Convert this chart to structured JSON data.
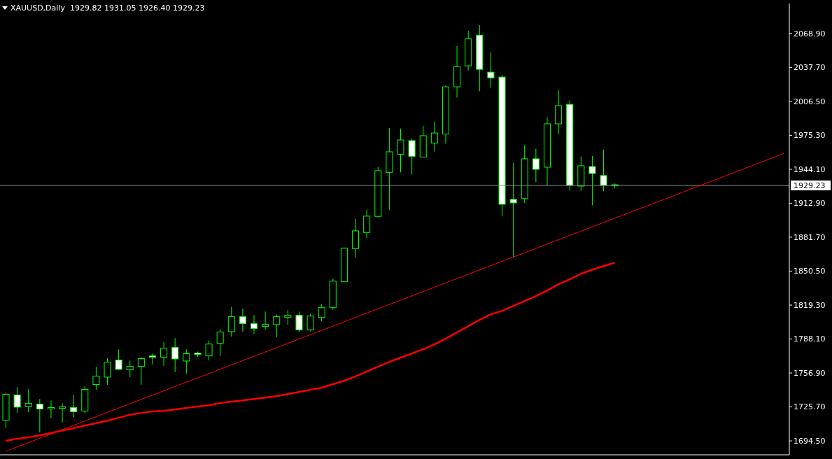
{
  "chart_data": {
    "type": "candlestick",
    "title": "XAUUSD,Daily  1929.82 1931.05 1926.40 1929.23",
    "categories": [
      null,
      null,
      null,
      null,
      null,
      null,
      null,
      null,
      null,
      null,
      null,
      null,
      null,
      null,
      null,
      null,
      null,
      null,
      null,
      null,
      null,
      null,
      null,
      null,
      null,
      null,
      null,
      null,
      null,
      null,
      null,
      null,
      null,
      null,
      null,
      null,
      null,
      null,
      null,
      null,
      null,
      null,
      null,
      null,
      null,
      null,
      null,
      null,
      null,
      null,
      null,
      null,
      null,
      null,
      null,
      null,
      null,
      null,
      null,
      null,
      null,
      null,
      null,
      null,
      null,
      null,
      null,
      null,
      null,
      null
    ],
    "series": [
      {
        "color": "#00ff00",
        "colors": [
          "#000000",
          "#ffffff",
          "#000000",
          "#ffffff",
          "#000000",
          "#000000",
          "#ffffff",
          "#000000",
          "#000000",
          "#000000",
          "#ffffff",
          "#000000",
          "#000000",
          "#ffffff",
          "#000000",
          "#ffffff",
          "#000000",
          "#ffffff",
          "#000000",
          "#000000",
          "#000000",
          "#ffffff",
          "#ffffff",
          "#000000",
          "#000000",
          "#000000",
          "#ffffff",
          "#000000",
          "#000000",
          "#000000",
          "#000000",
          "#000000",
          "#000000",
          "#000000",
          "#000000",
          "#000000",
          "#ffffff",
          "#000000",
          "#000000",
          "#000000",
          "#000000",
          "#000000",
          "#ffffff",
          "#ffffff",
          "#ffffff",
          "#ffffff",
          "#000000",
          "#ffffff",
          "#000000",
          "#000000",
          "#ffffff",
          "#000000",
          "#ffffff",
          "#ffffff",
          "#ffffff",
          null,
          null,
          null,
          null,
          null,
          null,
          null,
          null,
          null,
          null,
          null,
          null,
          null,
          null,
          null
        ],
        "ohlc": [
          [
            1713.3,
            1739.0,
            1706.2,
            1737.3
          ],
          [
            1736.7,
            1743.9,
            1720.4,
            1725.5
          ],
          [
            1726.2,
            1742.0,
            1720.8,
            1729.0
          ],
          [
            1728.3,
            1733.0,
            1702.4,
            1723.8
          ],
          [
            1723.8,
            1731.7,
            1715.2,
            1725.1
          ],
          [
            1724.5,
            1729.0,
            1711.4,
            1725.8
          ],
          [
            1725.1,
            1736.9,
            1716.1,
            1721.3
          ],
          [
            1721.9,
            1744.6,
            1719.7,
            1741.8
          ],
          [
            1746.3,
            1762.6,
            1741.6,
            1754.0
          ],
          [
            1753.1,
            1770.3,
            1746.1,
            1766.9
          ],
          [
            1768.8,
            1778.6,
            1759.8,
            1760.2
          ],
          [
            1759.8,
            1768.3,
            1753.1,
            1763.0
          ],
          [
            1763.0,
            1771.5,
            1746.1,
            1770.1
          ],
          [
            1772.6,
            1774.6,
            1764.7,
            1771.3
          ],
          [
            1771.3,
            1785.7,
            1763.4,
            1779.7
          ],
          [
            1780.3,
            1788.9,
            1757.6,
            1769.8
          ],
          [
            1767.9,
            1778.6,
            1756.3,
            1774.6
          ],
          [
            1775.2,
            1776.5,
            1771.7,
            1773.9
          ],
          [
            1772.6,
            1786.3,
            1768.5,
            1783.5
          ],
          [
            1784.2,
            1797.2,
            1772.4,
            1794.5
          ],
          [
            1794.8,
            1817.8,
            1790.4,
            1808.6
          ],
          [
            1808.6,
            1815.8,
            1794.8,
            1802.2
          ],
          [
            1802.2,
            1810.1,
            1792.9,
            1797.7
          ],
          [
            1799.6,
            1813.3,
            1796.8,
            1801.5
          ],
          [
            1801.3,
            1810.7,
            1789.7,
            1808.6
          ],
          [
            1807.9,
            1814.6,
            1801.1,
            1809.9
          ],
          [
            1809.9,
            1813.3,
            1794.2,
            1796.4
          ],
          [
            1796.4,
            1811.3,
            1795.1,
            1809.2
          ],
          [
            1807.9,
            1820.3,
            1804.3,
            1816.9
          ],
          [
            1816.9,
            1843.4,
            1814.7,
            1841.3
          ],
          [
            1840.7,
            1872.3,
            1840.7,
            1871.5
          ],
          [
            1871.2,
            1898.5,
            1862.7,
            1887.5
          ],
          [
            1886.0,
            1907.0,
            1880.7,
            1901.0
          ],
          [
            1900.8,
            1946.2,
            1899.5,
            1942.8
          ],
          [
            1941.2,
            1982.1,
            1906.6,
            1960.1
          ],
          [
            1957.9,
            1981.5,
            1941.2,
            1971.0
          ],
          [
            1970.4,
            1972.3,
            1939.3,
            1956.0
          ],
          [
            1955.3,
            1984.0,
            1955.3,
            1974.9
          ],
          [
            1968.2,
            1987.9,
            1960.3,
            1977.4
          ],
          [
            1976.5,
            2021.3,
            1967.5,
            2019.8
          ],
          [
            2019.8,
            2057.2,
            2009.9,
            2038.4
          ],
          [
            2039.1,
            2071.4,
            2034.9,
            2064.1
          ],
          [
            2067.3,
            2076.5,
            2015.7,
            2035.9
          ],
          [
            2033.3,
            2051.4,
            2018.9,
            2028.1
          ],
          [
            2028.8,
            2030.7,
            1900.8,
            1911.9
          ],
          [
            1916.4,
            1950.0,
            1863.2,
            1913.2
          ],
          [
            1917.1,
            1966.7,
            1913.0,
            1953.7
          ],
          [
            1953.7,
            1962.9,
            1932.2,
            1944.0
          ],
          [
            1946.0,
            1991.7,
            1929.3,
            1985.8
          ],
          [
            1985.8,
            2016.8,
            1976.3,
            2002.5
          ],
          [
            2003.7,
            2007.2,
            1924.5,
            1929.3
          ],
          [
            1928.6,
            1955.8,
            1924.5,
            1947.3
          ],
          [
            1946.6,
            1956.4,
            1911.0,
            1940.2
          ],
          [
            1938.3,
            1962.2,
            1923.9,
            1929.3
          ],
          [
            1929.82,
            1931.05,
            1926.4,
            1929.23
          ],
          null,
          null,
          null,
          null,
          null,
          null,
          null,
          null,
          null,
          null,
          null,
          null,
          null,
          null,
          null
        ]
      },
      {
        "type": "line",
        "color": "#ff0000",
        "values": [
          1694.5,
          1696.4,
          1697.7,
          1699.6,
          1701.6,
          1704.1,
          1706.1,
          1708.6,
          1710.6,
          1713.1,
          1715.7,
          1718.3,
          1720.2,
          1721.5,
          1722.1,
          1723.4,
          1724.7,
          1726.0,
          1727.2,
          1729.2,
          1730.5,
          1731.7,
          1733.0,
          1734.3,
          1735.6,
          1737.5,
          1739.4,
          1741.4,
          1743.3,
          1746.5,
          1749.7,
          1753.6,
          1758.1,
          1762.6,
          1767.0,
          1770.9,
          1774.7,
          1778.6,
          1783.1,
          1788.2,
          1794.0,
          1799.8,
          1805.6,
          1810.7,
          1813.9,
          1818.4,
          1822.9,
          1827.4,
          1832.5,
          1838.3,
          1842.8,
          1847.9,
          1851.8,
          1855.0,
          1858.2,
          null,
          null,
          null,
          null,
          null,
          null,
          null,
          null,
          null,
          null,
          null,
          null,
          null,
          null,
          null
        ]
      },
      {
        "type": "line",
        "color": "#ff0000",
        "values": [
          1684.9,
          null,
          null,
          null,
          null,
          null,
          null,
          null,
          null,
          null,
          null,
          null,
          null,
          null,
          null,
          null,
          null,
          null,
          null,
          null,
          null,
          null,
          null,
          null,
          null,
          null,
          null,
          null,
          null,
          null,
          null,
          null,
          null,
          null,
          null,
          null,
          null,
          null,
          null,
          null,
          null,
          null,
          null,
          null,
          null,
          null,
          null,
          null,
          null,
          null,
          null,
          null,
          null,
          null,
          null,
          null,
          null,
          null,
          null,
          null,
          null,
          null,
          null,
          null,
          null,
          null,
          null,
          null,
          null,
          1958.5
        ]
      }
    ],
    "ylim": [
      1681.7,
      2096.4
    ],
    "yticks": [
      {
        "value": 1694.5,
        "label": "1694.50"
      },
      {
        "value": 1725.7,
        "label": "1725.70"
      },
      {
        "value": 1756.9,
        "label": "1756.90"
      },
      {
        "value": 1788.1,
        "label": "1788.10"
      },
      {
        "value": 1819.3,
        "label": "1819.30"
      },
      {
        "value": 1850.5,
        "label": "1850.50"
      },
      {
        "value": 1881.7,
        "label": "1881.70"
      },
      {
        "value": 1912.9,
        "label": "1912.90"
      },
      {
        "value": 1944.1,
        "label": "1944.10"
      },
      {
        "value": 1975.3,
        "label": "1975.30"
      },
      {
        "value": 2006.5,
        "label": "2006.50"
      },
      {
        "value": 2037.7,
        "label": "2037.70"
      },
      {
        "value": 2068.9,
        "label": "2068.90"
      }
    ],
    "ref_lines": [
      {
        "axis": "y",
        "value": 1929.23,
        "label": "1929.23",
        "color": "#8c8c8c"
      }
    ],
    "tick_labels": "y"
  }
}
